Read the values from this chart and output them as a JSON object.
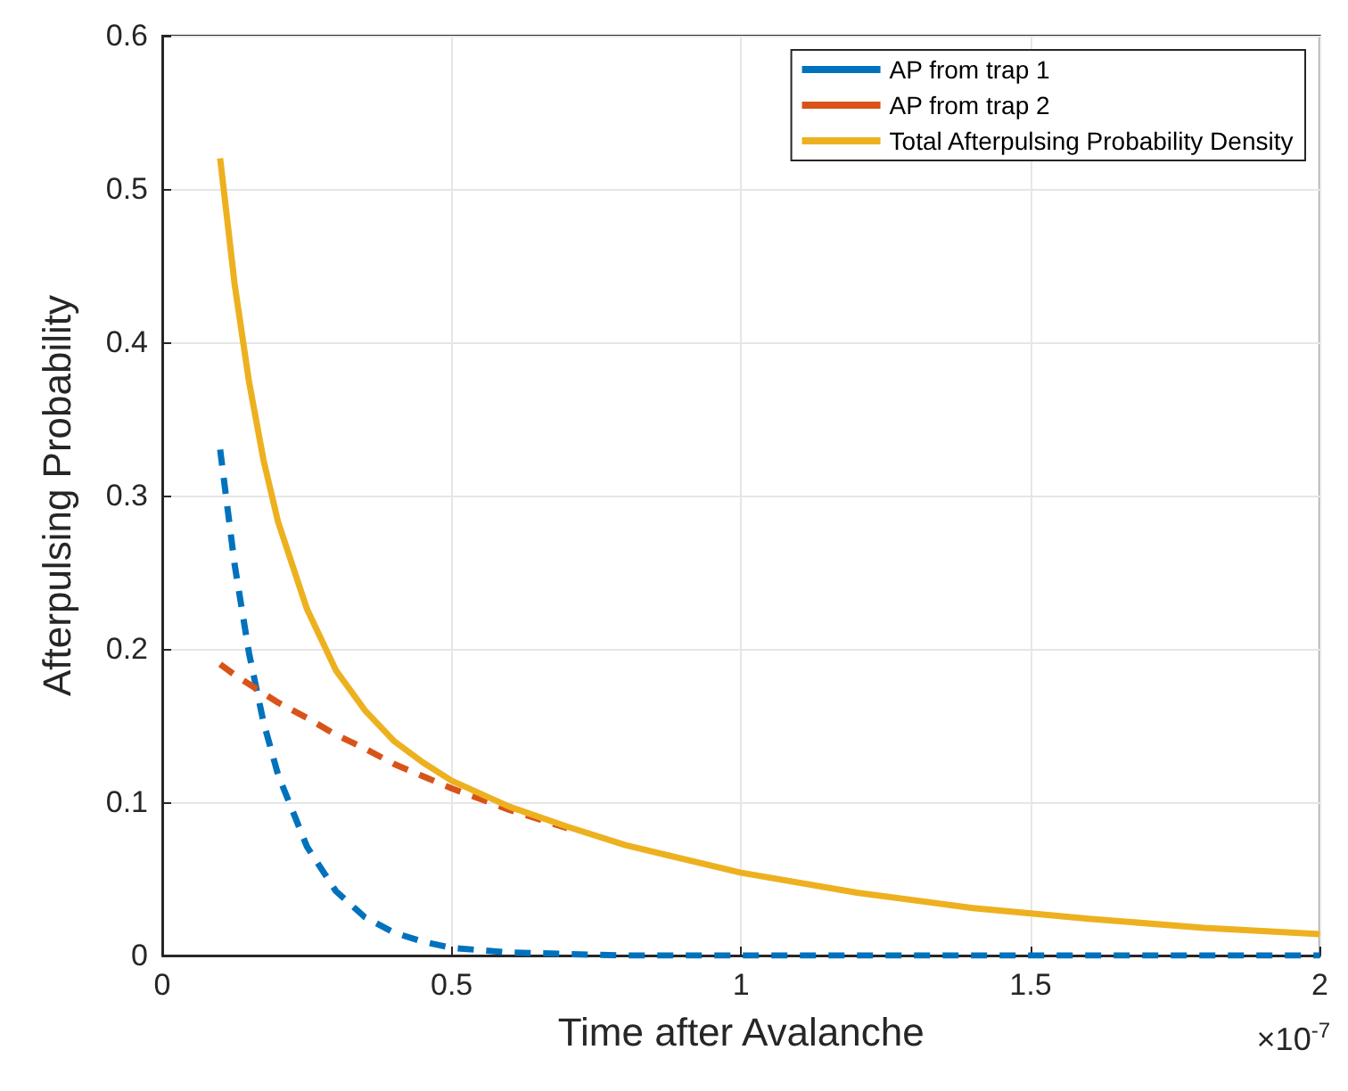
{
  "chart_data": {
    "type": "line",
    "xlabel": "Time after Avalanche",
    "ylabel": "Afterpulsing Probability",
    "x": [
      0.1,
      0.125,
      0.15,
      0.175,
      0.2,
      0.25,
      0.3,
      0.35,
      0.4,
      0.45,
      0.5,
      0.6,
      0.7,
      0.8,
      1.0,
      1.2,
      1.4,
      1.6,
      1.8,
      2.0
    ],
    "series": [
      {
        "name": "AP from trap 1",
        "color": "#0072bd",
        "line_style": "dashed",
        "values": [
          0.33,
          0.255,
          0.197,
          0.152,
          0.118,
          0.071,
          0.042,
          0.025,
          0.015,
          0.009,
          0.005,
          0.002,
          0.001,
          0,
          0,
          0,
          0,
          0,
          0,
          0
        ]
      },
      {
        "name": "AP from trap 2",
        "color": "#d95319",
        "line_style": "dashed",
        "values": [
          0.19,
          0.183,
          0.177,
          0.171,
          0.165,
          0.155,
          0.144,
          0.135,
          0.125,
          0.117,
          0.109,
          0.095,
          0.083,
          null,
          null,
          null,
          null,
          null,
          null,
          null
        ]
      },
      {
        "name": "Total Afterpulsing Probability Density",
        "color": "#edb120",
        "line_style": "solid",
        "values": [
          0.52,
          0.438,
          0.374,
          0.323,
          0.283,
          0.226,
          0.186,
          0.16,
          0.14,
          0.126,
          0.114,
          0.097,
          0.084,
          0.072,
          0.054,
          0.041,
          0.031,
          0.024,
          0.018,
          0.014
        ]
      }
    ],
    "xlim": [
      0,
      2
    ],
    "xticks": [
      0,
      0.5,
      1,
      1.5,
      2
    ],
    "ylim": [
      0,
      0.6
    ],
    "yticks": [
      0,
      0.1,
      0.2,
      0.3,
      0.4,
      0.5,
      0.6
    ],
    "grid": true,
    "legend": "top right",
    "marker": "none",
    "annotations": [
      "×10$^{-7}$"
    ]
  }
}
